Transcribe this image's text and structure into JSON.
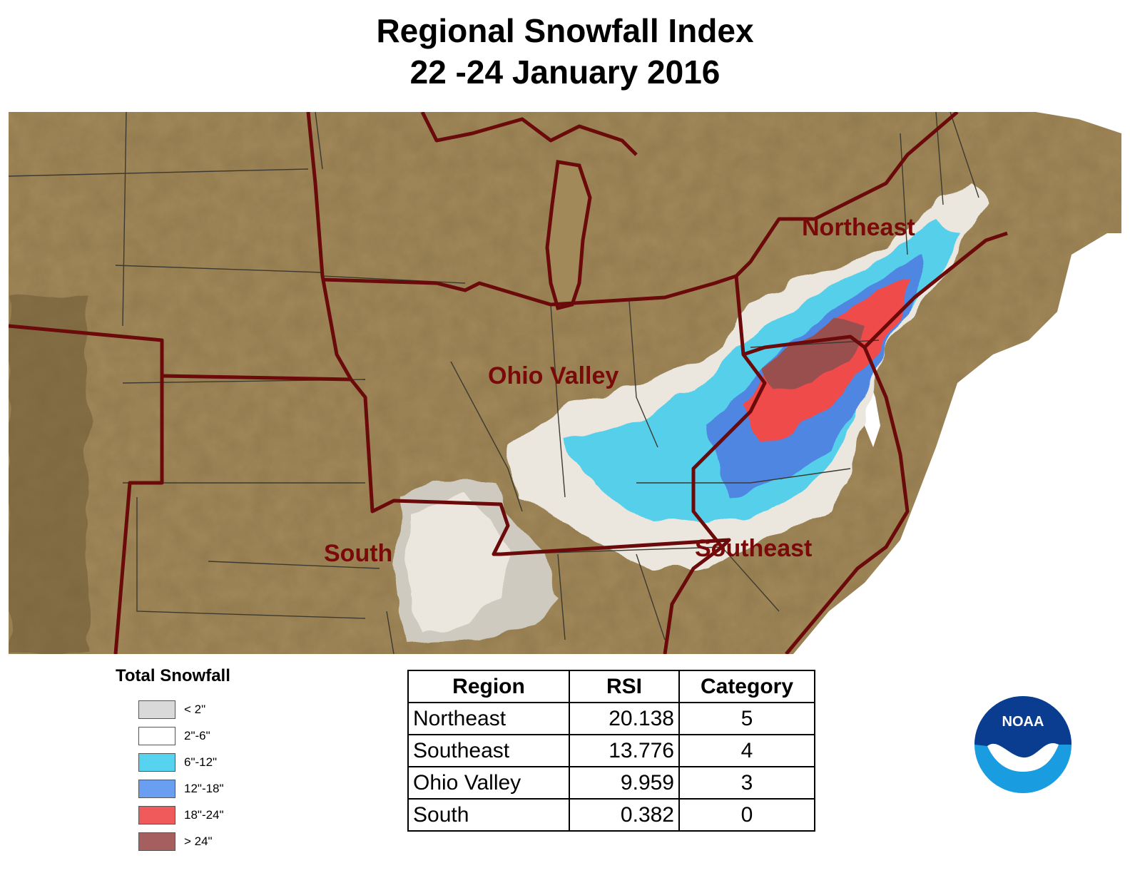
{
  "title": {
    "line1": "Regional Snowfall Index",
    "line2": "22 -24 January 2016"
  },
  "map": {
    "region_labels": {
      "northeast": "Northeast",
      "ohio_valley": "Ohio Valley",
      "south": "South",
      "southeast": "Southeast"
    },
    "colors": {
      "terrain": "#a08a5a",
      "border": "#6b0a0a",
      "state_line": "#3c3a30"
    }
  },
  "legend": {
    "title": "Total Snowfall",
    "items": [
      {
        "label": "< 2\"",
        "color": "#d9d9d9"
      },
      {
        "label": "2\"-6\"",
        "color": "#ffffff"
      },
      {
        "label": "6\"-12\"",
        "color": "#55d3ef"
      },
      {
        "label": "12\"-18\"",
        "color": "#6a9ef0"
      },
      {
        "label": "18\"-24\"",
        "color": "#f05a5a"
      },
      {
        "label": "> 24\"",
        "color": "#a65f5f"
      }
    ]
  },
  "table": {
    "headers": {
      "region": "Region",
      "rsi": "RSI",
      "category": "Category"
    },
    "rows": [
      {
        "region": "Northeast",
        "rsi": "20.138",
        "category": "5"
      },
      {
        "region": "Southeast",
        "rsi": "13.776",
        "category": "4"
      },
      {
        "region": "Ohio Valley",
        "rsi": "9.959",
        "category": "3"
      },
      {
        "region": "South",
        "rsi": "0.382",
        "category": "0"
      }
    ]
  },
  "logo": {
    "text": "NOAA",
    "icon": "noaa-logo-icon"
  }
}
